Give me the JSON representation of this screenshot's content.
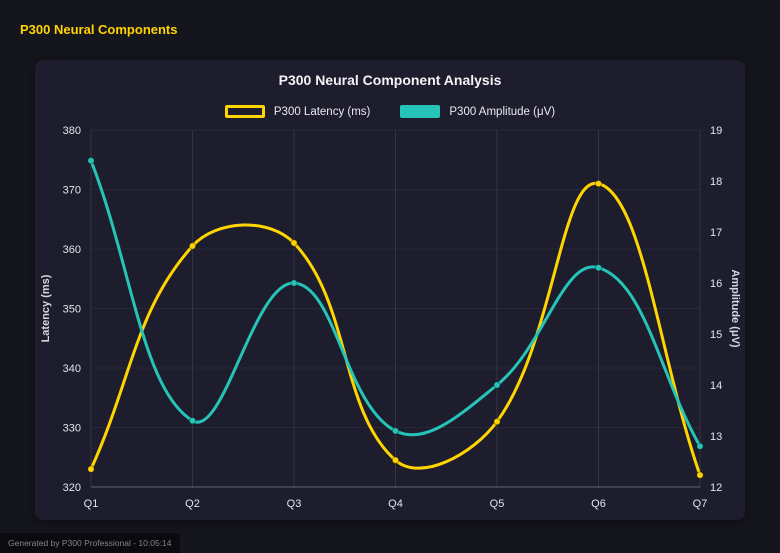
{
  "header": {
    "title": "P300 Neural Components"
  },
  "colors": {
    "title_accent": "#ffd400",
    "card_bg": "#1d1d2d",
    "page_bg": "#15151d"
  },
  "chart": {
    "title": "P300 Neural Component Analysis"
  },
  "chart_data": {
    "type": "line",
    "categories": [
      "Q1",
      "Q2",
      "Q3",
      "Q4",
      "Q5",
      "Q6",
      "Q7"
    ],
    "series": [
      {
        "name": "P300 Latency (ms)",
        "axis": "left",
        "color": "#ffd400",
        "legend_style": "hollow",
        "values": [
          323,
          360.5,
          361,
          324.5,
          331,
          371,
          322
        ]
      },
      {
        "name": "P300 Amplitude (μV)",
        "axis": "right",
        "color": "#26c4b8",
        "legend_style": "solid",
        "values": [
          18.4,
          13.3,
          16.0,
          13.1,
          14.0,
          16.3,
          12.8
        ]
      }
    ],
    "left_axis": {
      "label": "Latency (ms)",
      "min": 320,
      "max": 380,
      "step": 10
    },
    "right_axis": {
      "label": "Amplitude (μV)",
      "min": 12,
      "max": 19,
      "step": 1
    },
    "smooth": true,
    "tension": 0.4,
    "grid": "vertical-strong-horizontal-faint",
    "legend_position": "top"
  },
  "footer": {
    "text": "Generated by P300 Professional - 10:05:14"
  }
}
